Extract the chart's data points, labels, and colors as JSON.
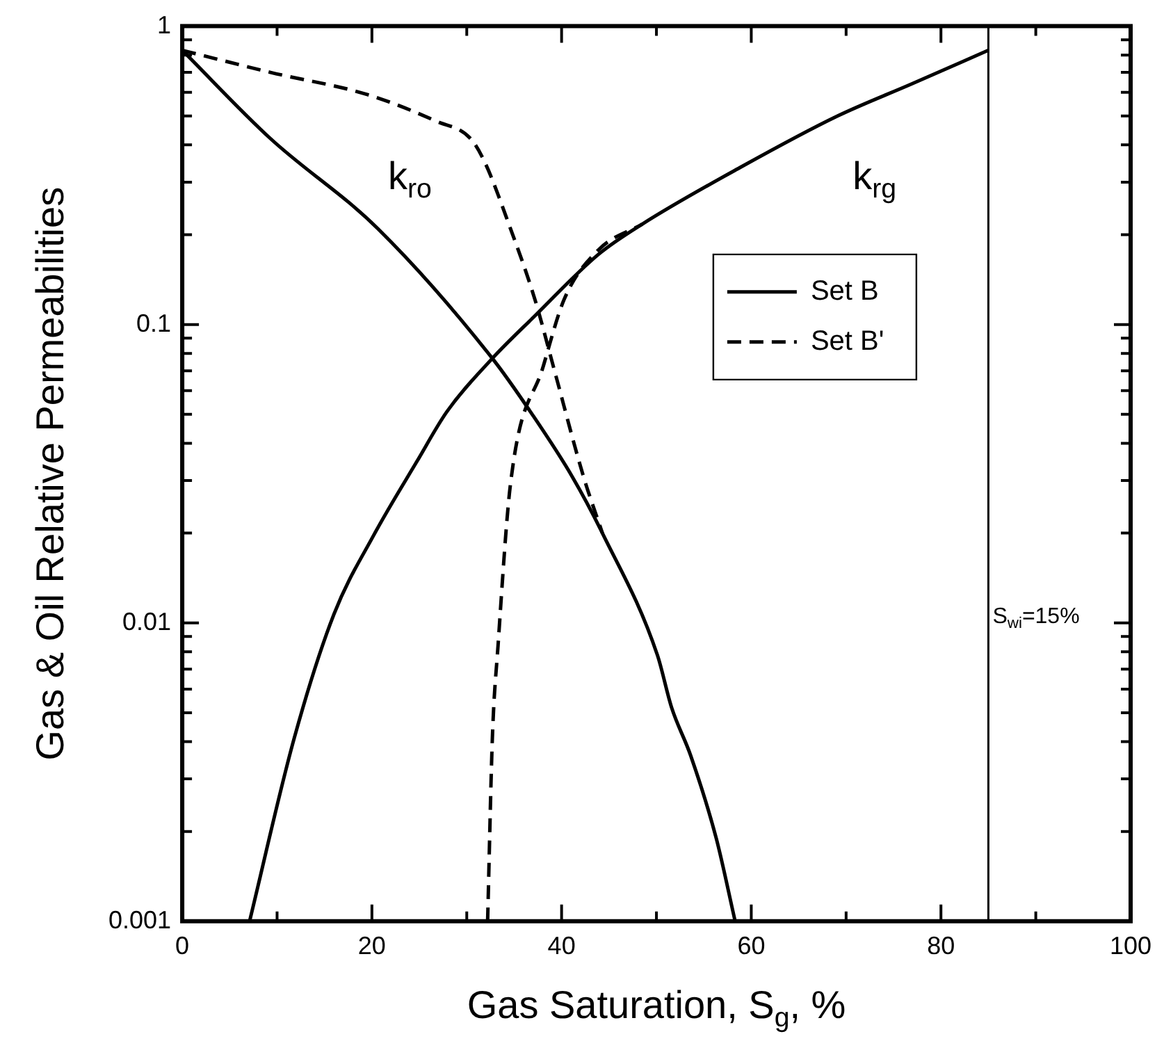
{
  "chart_data": {
    "type": "line",
    "xlabel": "Gas Saturation, S$_{g}$, %",
    "ylabel": "Gas & Oil Relative Permeabilities",
    "log": "y",
    "grid": false,
    "legend": "right",
    "xlim": [
      0,
      100
    ],
    "xticks": [
      0,
      {
        "value": 10,
        "label": null
      },
      20,
      {
        "value": 30,
        "label": null
      },
      40,
      {
        "value": 50,
        "label": null
      },
      60,
      {
        "value": 70,
        "label": null
      },
      80,
      {
        "value": 90,
        "label": null
      },
      100
    ],
    "ylim": [
      0.001,
      1
    ],
    "yticks": [
      0.001,
      {
        "value": 0.002,
        "label": null
      },
      {
        "value": 0.003,
        "label": null
      },
      {
        "value": 0.004,
        "label": null
      },
      {
        "value": 0.005,
        "label": null
      },
      {
        "value": 0.006,
        "label": null
      },
      {
        "value": 0.007,
        "label": null
      },
      {
        "value": 0.008,
        "label": null
      },
      {
        "value": 0.009,
        "label": null
      },
      0.01,
      {
        "value": 0.02,
        "label": null
      },
      {
        "value": 0.03,
        "label": null
      },
      {
        "value": 0.04,
        "label": null
      },
      {
        "value": 0.05,
        "label": null
      },
      {
        "value": 0.06,
        "label": null
      },
      {
        "value": 0.07,
        "label": null
      },
      {
        "value": 0.08,
        "label": null
      },
      {
        "value": 0.09,
        "label": null
      },
      0.1,
      {
        "value": 0.2,
        "label": null
      },
      {
        "value": 0.3,
        "label": null
      },
      {
        "value": 0.4,
        "label": null
      },
      {
        "value": 0.5,
        "label": null
      },
      {
        "value": 0.6,
        "label": null
      },
      {
        "value": 0.7,
        "label": null
      },
      {
        "value": 0.8,
        "label": null
      },
      {
        "value": 0.9,
        "label": null
      },
      1
    ],
    "series": [
      {
        "name": "Set B",
        "color": "#000000",
        "line_style": "solid",
        "x": [
          0,
          9.3,
          20.6,
          32.7,
          36.9,
          41.1,
          44.3,
          50.1,
          51.6,
          53.6,
          56.3,
          58.3
        ],
        "values": [
          0.83,
          0.42,
          0.21,
          0.077,
          0.05,
          0.031,
          0.02,
          0.0078,
          0.0052,
          0.0036,
          0.0019,
          0.001
        ]
      },
      {
        "color": "#000000",
        "line_style": "solid",
        "x": [
          7.1,
          11.8,
          16,
          20.2,
          24.8,
          27.9,
          32.7,
          37.2,
          43.9,
          48.5,
          58.9,
          69.1,
          76.9,
          85
        ],
        "values": [
          0.001,
          0.0041,
          0.0107,
          0.0197,
          0.035,
          0.051,
          0.077,
          0.107,
          0.172,
          0.217,
          0.337,
          0.5,
          0.64,
          0.83
        ]
      },
      {
        "name": "Set B'",
        "color": "#000000",
        "line_style": "dashed",
        "x": [
          0,
          9.3,
          19.5,
          26.8,
          30.4,
          31.9,
          34.6,
          37.2,
          39.2,
          42.3,
          44.3
        ],
        "values": [
          0.83,
          0.7,
          0.59,
          0.48,
          0.42,
          0.35,
          0.21,
          0.121,
          0.071,
          0.031,
          0.02
        ]
      },
      {
        "color": "#000000",
        "line_style": "dashed",
        "x": [
          32.2,
          32.7,
          33.3,
          34.6,
          38.1,
          40.3,
          43.9,
          48.5
        ],
        "values": [
          0.001,
          0.0041,
          0.0084,
          0.029,
          0.073,
          0.122,
          0.178,
          0.217
        ]
      }
    ],
    "ref_lines": [
      {
        "axis": "x",
        "value": 85,
        "color": "#000000"
      }
    ],
    "annotations": [
      "k$_{ro}$",
      "k$_{rg}$",
      "S$_{wi}$=15%"
    ]
  }
}
